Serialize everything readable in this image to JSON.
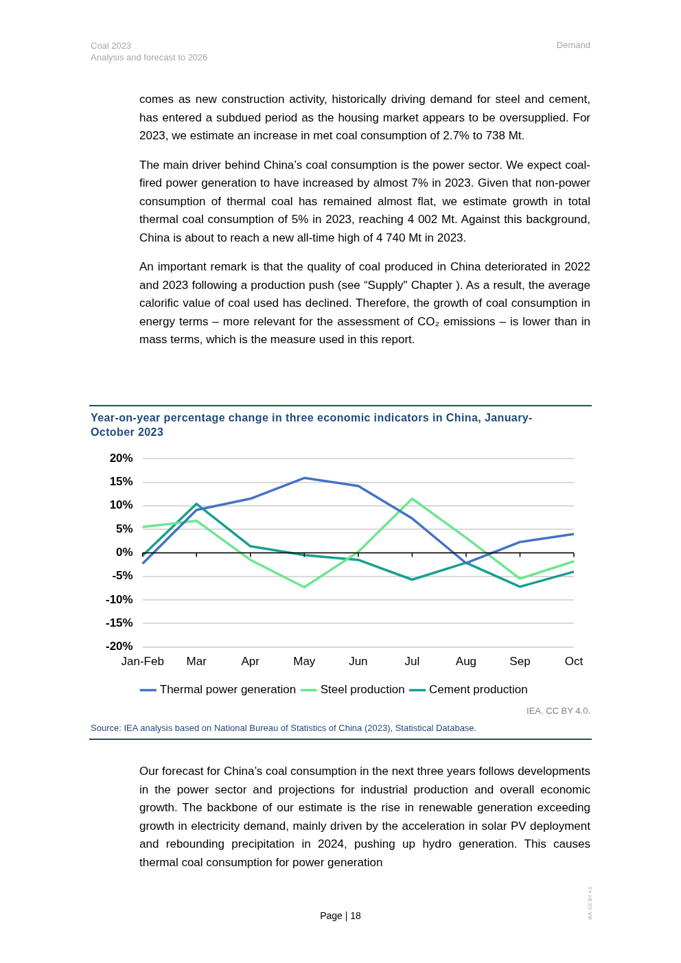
{
  "chart_data": {
    "type": "line",
    "title": "Year-on-year percentage change in three economic indicators in China, January-October 2023",
    "categories": [
      "Jan-Feb",
      "Mar",
      "Apr",
      "May",
      "Jun",
      "Jul",
      "Aug",
      "Sep",
      "Oct"
    ],
    "series": [
      {
        "name": "Thermal power generation",
        "color": "#4472c4",
        "values": [
          -2.3,
          9.1,
          11.5,
          15.9,
          14.2,
          7.3,
          -2.2,
          2.3,
          4.0
        ]
      },
      {
        "name": "Steel production",
        "color": "#6ee68f",
        "values": [
          5.5,
          6.8,
          -1.5,
          -7.3,
          0.2,
          11.5,
          3.2,
          -5.5,
          -1.8
        ]
      },
      {
        "name": "Cement production",
        "color": "#16a08e",
        "values": [
          -0.6,
          10.4,
          1.4,
          -0.5,
          -1.5,
          -5.7,
          -2.1,
          -7.2,
          -4.0
        ]
      }
    ],
    "ylim": [
      -20,
      20
    ],
    "yticks": [
      {
        "value": -20,
        "label": "-20%"
      },
      {
        "value": -15,
        "label": "-15%"
      },
      {
        "value": -10,
        "label": "-10%"
      },
      {
        "value": -5,
        "label": "-5%"
      },
      {
        "value": 0,
        "label": "0%"
      },
      {
        "value": 5,
        "label": "5%"
      },
      {
        "value": 10,
        "label": "10%"
      },
      {
        "value": 15,
        "label": "15%"
      },
      {
        "value": 20,
        "label": "20%"
      }
    ],
    "grid": "y",
    "legend": "bottom",
    "marker": "none",
    "line_style": "solid",
    "annotations": [
      "Coal 2023",
      "Analysis and forecast to 2026",
      "Demand",
      "comes as new construction activity, historically driving demand for steel and cement, has entered a subdued period as the housing market appears to be oversupplied. For 2023, we estimate an increase in met coal consumption of 2.7% to 738 Mt.",
      "The main driver behind China’s coal consumption is the power sector. We expect coal-fired power generation to have increased by almost 7% in 2023. Given that non-power consumption of thermal coal has remained almost flat, we estimate growth in total thermal coal consumption of 5% in 2023, reaching 4 002 Mt. Against this background, China is about to reach a new all-time high of 4 740 Mt in 2023.",
      "An important remark is that the quality of coal produced in China deteriorated in 2022 and 2023 following a production push (see “Supply\" Chapter ). As a result, the average calorific value of coal used has declined. Therefore, the growth of coal consumption in energy terms – more relevant for the assessment of CO₂ emissions – is lower than in mass terms, which is the measure used in this report.",
      "IEA. CC BY 4.0.",
      "Source: IEA analysis based on National Bureau of Statistics of China (2023), Statistical Database.",
      "Our forecast for China’s coal consumption in the next three years follows developments in the power sector and projections for industrial production and overall economic growth. The backbone of our estimate is the rise in renewable generation exceeding growth in electricity demand, mainly driven by the acceleration in solar PV deployment and rebounding precipitation in 2024, pushing up hydro generation. This causes thermal coal consumption for power generation",
      "Page | 18",
      "IEA. CC BY 4.0."
    ]
  }
}
